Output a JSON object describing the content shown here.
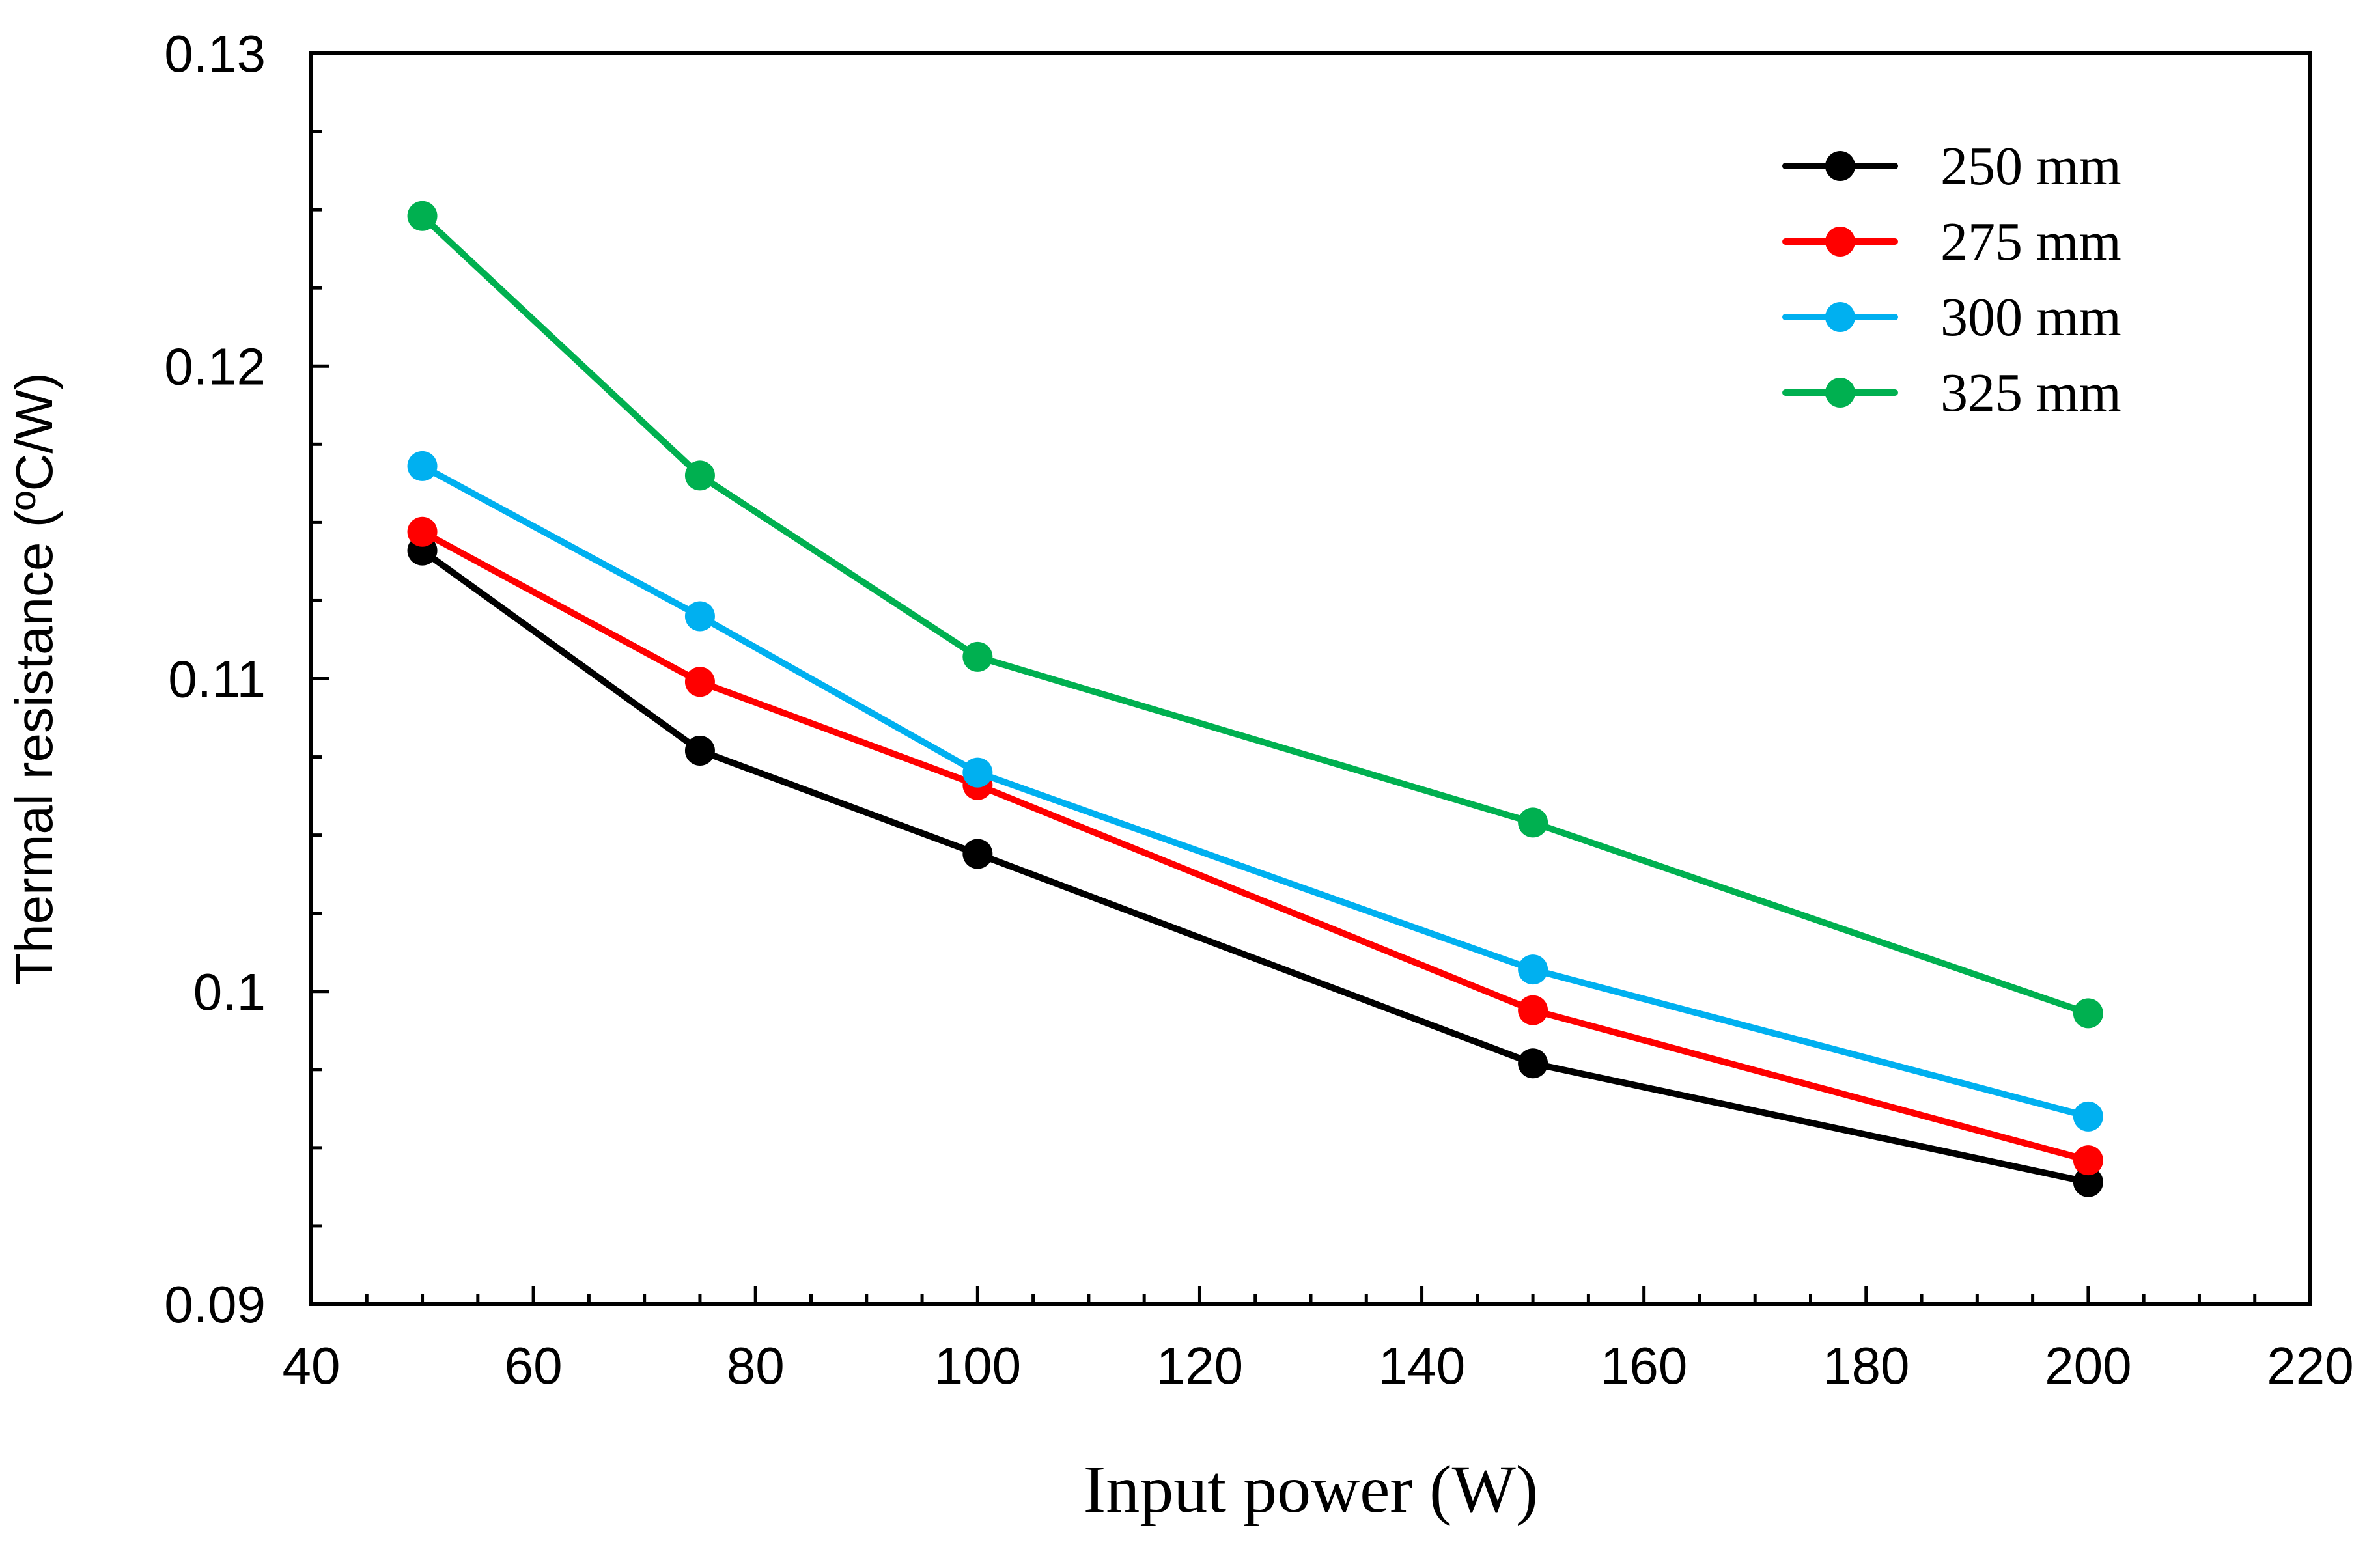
{
  "chart_data": {
    "type": "line",
    "title": "",
    "xlabel": "Input power (W)",
    "ylabel": "Thermal resistance (ºC/W)",
    "xlim": [
      40,
      220
    ],
    "ylim": [
      0.09,
      0.13
    ],
    "x_ticks": [
      40,
      60,
      80,
      100,
      120,
      140,
      160,
      180,
      200,
      220
    ],
    "x_tick_labels": [
      "40",
      "60",
      "80",
      "100",
      "120",
      "140",
      "160",
      "180",
      "200",
      "220"
    ],
    "y_ticks": [
      0.09,
      0.1,
      0.11,
      0.12,
      0.13
    ],
    "y_tick_labels": [
      "0.09",
      "0.1",
      "0.11",
      "0.12",
      "0.13"
    ],
    "x_minor_step": 5,
    "y_minor_step": 0.0025,
    "grid": false,
    "legend_position": "top-right",
    "x": [
      50,
      75,
      100,
      150,
      200
    ],
    "series": [
      {
        "name": "250 mm",
        "color": "#000000",
        "values": [
          0.1141,
          0.1077,
          0.1044,
          0.0977,
          0.0939
        ]
      },
      {
        "name": "275 mm",
        "color": "#ff0000",
        "values": [
          0.1147,
          0.1099,
          0.1066,
          0.0994,
          0.0946
        ]
      },
      {
        "name": "300 mm",
        "color": "#00b0f0",
        "values": [
          0.1168,
          0.112,
          0.107,
          0.1007,
          0.096
        ]
      },
      {
        "name": "325 mm",
        "color": "#00b050",
        "values": [
          0.1248,
          0.1165,
          0.1107,
          0.1054,
          0.0993
        ]
      }
    ]
  }
}
